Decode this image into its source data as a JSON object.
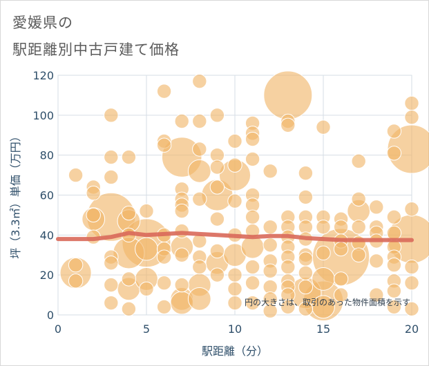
{
  "header": {
    "line1": "愛媛県の",
    "line2": "駅距離別中古戸建て価格"
  },
  "chart_data": {
    "type": "scatter",
    "title": "愛媛県の駅距離別中古戸建て価格",
    "xlabel": "駅距離（分）",
    "ylabel": "坪（3.3㎡）単価（万円）",
    "xlim": [
      0,
      20
    ],
    "ylim": [
      0,
      120
    ],
    "xticks": [
      0,
      5,
      10,
      15,
      20
    ],
    "yticks": [
      0,
      20,
      40,
      60,
      80,
      100,
      120
    ],
    "grid": true,
    "note": "円の大きさは、取引のあった物件面積を示す",
    "colors": {
      "bubble": "#f0b468",
      "bubble_edge": "#ffffff",
      "trend": "#d9695a"
    },
    "points": [
      {
        "x": 1,
        "y": 70,
        "s": 1
      },
      {
        "x": 1,
        "y": 21,
        "s": 3
      },
      {
        "x": 1,
        "y": 25,
        "s": 1
      },
      {
        "x": 1,
        "y": 17,
        "s": 1
      },
      {
        "x": 2,
        "y": 64,
        "s": 1
      },
      {
        "x": 2,
        "y": 61,
        "s": 1
      },
      {
        "x": 2,
        "y": 48,
        "s": 2
      },
      {
        "x": 2,
        "y": 50,
        "s": 1
      },
      {
        "x": 2,
        "y": 39,
        "s": 1
      },
      {
        "x": 3,
        "y": 100,
        "s": 1
      },
      {
        "x": 3,
        "y": 79,
        "s": 1
      },
      {
        "x": 3,
        "y": 69,
        "s": 1
      },
      {
        "x": 3,
        "y": 49,
        "s": 5
      },
      {
        "x": 3,
        "y": 29,
        "s": 1
      },
      {
        "x": 3,
        "y": 26,
        "s": 1
      },
      {
        "x": 3,
        "y": 15,
        "s": 1
      },
      {
        "x": 3,
        "y": 6,
        "s": 1
      },
      {
        "x": 4,
        "y": 79,
        "s": 1
      },
      {
        "x": 4,
        "y": 51,
        "s": 1
      },
      {
        "x": 4,
        "y": 47,
        "s": 2
      },
      {
        "x": 4,
        "y": 40,
        "s": 1
      },
      {
        "x": 4,
        "y": 31,
        "s": 3
      },
      {
        "x": 4,
        "y": 18,
        "s": 1
      },
      {
        "x": 4,
        "y": 13,
        "s": 2
      },
      {
        "x": 4,
        "y": 3,
        "s": 1
      },
      {
        "x": 5,
        "y": 52,
        "s": 1
      },
      {
        "x": 5,
        "y": 36,
        "s": 5
      },
      {
        "x": 5,
        "y": 33,
        "s": 2
      },
      {
        "x": 5,
        "y": 18,
        "s": 2
      },
      {
        "x": 5,
        "y": 13,
        "s": 1
      },
      {
        "x": 6,
        "y": 112,
        "s": 1
      },
      {
        "x": 6,
        "y": 87,
        "s": 1
      },
      {
        "x": 6,
        "y": 85,
        "s": 1
      },
      {
        "x": 6,
        "y": 40,
        "s": 1
      },
      {
        "x": 6,
        "y": 33,
        "s": 1
      },
      {
        "x": 6,
        "y": 29,
        "s": 1
      },
      {
        "x": 6,
        "y": 16,
        "s": 1
      },
      {
        "x": 6,
        "y": 4,
        "s": 1
      },
      {
        "x": 7,
        "y": 97,
        "s": 1
      },
      {
        "x": 7,
        "y": 79,
        "s": 4
      },
      {
        "x": 7,
        "y": 63,
        "s": 1
      },
      {
        "x": 7,
        "y": 58,
        "s": 1
      },
      {
        "x": 7,
        "y": 55,
        "s": 1
      },
      {
        "x": 7,
        "y": 52,
        "s": 1
      },
      {
        "x": 7,
        "y": 42,
        "s": 1
      },
      {
        "x": 7,
        "y": 34,
        "s": 2
      },
      {
        "x": 7,
        "y": 30,
        "s": 1
      },
      {
        "x": 7,
        "y": 15,
        "s": 1
      },
      {
        "x": 7,
        "y": 8,
        "s": 2
      },
      {
        "x": 7,
        "y": 6,
        "s": 2
      },
      {
        "x": 8,
        "y": 117,
        "s": 1
      },
      {
        "x": 8,
        "y": 97,
        "s": 1
      },
      {
        "x": 8,
        "y": 83,
        "s": 1
      },
      {
        "x": 8,
        "y": 72,
        "s": 2
      },
      {
        "x": 8,
        "y": 58,
        "s": 1
      },
      {
        "x": 8,
        "y": 37,
        "s": 1
      },
      {
        "x": 8,
        "y": 29,
        "s": 1
      },
      {
        "x": 8,
        "y": 24,
        "s": 1
      },
      {
        "x": 8,
        "y": 15,
        "s": 2
      },
      {
        "x": 8,
        "y": 8,
        "s": 2
      },
      {
        "x": 9,
        "y": 100,
        "s": 1
      },
      {
        "x": 9,
        "y": 80,
        "s": 1
      },
      {
        "x": 9,
        "y": 74,
        "s": 1
      },
      {
        "x": 9,
        "y": 64,
        "s": 1
      },
      {
        "x": 9,
        "y": 60,
        "s": 3
      },
      {
        "x": 9,
        "y": 48,
        "s": 1
      },
      {
        "x": 9,
        "y": 32,
        "s": 1
      },
      {
        "x": 9,
        "y": 26,
        "s": 2
      },
      {
        "x": 9,
        "y": 20,
        "s": 1
      },
      {
        "x": 10,
        "y": 87,
        "s": 1
      },
      {
        "x": 10,
        "y": 75,
        "s": 1
      },
      {
        "x": 10,
        "y": 70,
        "s": 3
      },
      {
        "x": 10,
        "y": 57,
        "s": 1
      },
      {
        "x": 10,
        "y": 40,
        "s": 1
      },
      {
        "x": 10,
        "y": 30,
        "s": 2
      },
      {
        "x": 10,
        "y": 20,
        "s": 1
      },
      {
        "x": 10,
        "y": 13,
        "s": 1
      },
      {
        "x": 10,
        "y": 6,
        "s": 1
      },
      {
        "x": 11,
        "y": 96,
        "s": 1
      },
      {
        "x": 11,
        "y": 91,
        "s": 1
      },
      {
        "x": 11,
        "y": 88,
        "s": 1
      },
      {
        "x": 11,
        "y": 78,
        "s": 1
      },
      {
        "x": 11,
        "y": 60,
        "s": 1
      },
      {
        "x": 11,
        "y": 55,
        "s": 1
      },
      {
        "x": 11,
        "y": 49,
        "s": 1
      },
      {
        "x": 11,
        "y": 42,
        "s": 1
      },
      {
        "x": 11,
        "y": 34,
        "s": 2
      },
      {
        "x": 11,
        "y": 24,
        "s": 1
      },
      {
        "x": 11,
        "y": 16,
        "s": 1
      },
      {
        "x": 11,
        "y": 6,
        "s": 1
      },
      {
        "x": 12,
        "y": 72,
        "s": 1
      },
      {
        "x": 12,
        "y": 44,
        "s": 1
      },
      {
        "x": 12,
        "y": 35,
        "s": 1
      },
      {
        "x": 12,
        "y": 27,
        "s": 1
      },
      {
        "x": 12,
        "y": 22,
        "s": 1
      },
      {
        "x": 12,
        "y": 14,
        "s": 1
      },
      {
        "x": 12,
        "y": 8,
        "s": 1
      },
      {
        "x": 12,
        "y": 2,
        "s": 1
      },
      {
        "x": 13,
        "y": 110,
        "s": 5
      },
      {
        "x": 13,
        "y": 97,
        "s": 1
      },
      {
        "x": 13,
        "y": 95,
        "s": 1
      },
      {
        "x": 13,
        "y": 49,
        "s": 1
      },
      {
        "x": 13,
        "y": 44,
        "s": 1
      },
      {
        "x": 13,
        "y": 39,
        "s": 1
      },
      {
        "x": 13,
        "y": 34,
        "s": 1
      },
      {
        "x": 13,
        "y": 29,
        "s": 1
      },
      {
        "x": 13,
        "y": 24,
        "s": 1
      },
      {
        "x": 13,
        "y": 17,
        "s": 1
      },
      {
        "x": 13,
        "y": 14,
        "s": 1
      },
      {
        "x": 13,
        "y": 10,
        "s": 1
      },
      {
        "x": 13,
        "y": 4,
        "s": 1
      },
      {
        "x": 14,
        "y": 71,
        "s": 1
      },
      {
        "x": 14,
        "y": 59,
        "s": 1
      },
      {
        "x": 14,
        "y": 49,
        "s": 1
      },
      {
        "x": 14,
        "y": 44,
        "s": 1
      },
      {
        "x": 14,
        "y": 38,
        "s": 1
      },
      {
        "x": 14,
        "y": 30,
        "s": 1
      },
      {
        "x": 14,
        "y": 28,
        "s": 1
      },
      {
        "x": 14,
        "y": 21,
        "s": 1
      },
      {
        "x": 14,
        "y": 14,
        "s": 1
      },
      {
        "x": 14,
        "y": 11,
        "s": 3
      },
      {
        "x": 14,
        "y": 3,
        "s": 1
      },
      {
        "x": 15,
        "y": 94,
        "s": 1
      },
      {
        "x": 15,
        "y": 49,
        "s": 1
      },
      {
        "x": 15,
        "y": 44,
        "s": 1
      },
      {
        "x": 15,
        "y": 31,
        "s": 1
      },
      {
        "x": 15,
        "y": 18,
        "s": 2
      },
      {
        "x": 15,
        "y": 7,
        "s": 4
      },
      {
        "x": 15,
        "y": 4,
        "s": 2
      },
      {
        "x": 16,
        "y": 48,
        "s": 1
      },
      {
        "x": 16,
        "y": 44,
        "s": 1
      },
      {
        "x": 16,
        "y": 37,
        "s": 1
      },
      {
        "x": 16,
        "y": 33,
        "s": 1
      },
      {
        "x": 16,
        "y": 29,
        "s": 6
      },
      {
        "x": 16,
        "y": 18,
        "s": 1
      },
      {
        "x": 16,
        "y": 10,
        "s": 1
      },
      {
        "x": 17,
        "y": 77,
        "s": 1
      },
      {
        "x": 17,
        "y": 58,
        "s": 1
      },
      {
        "x": 17,
        "y": 52,
        "s": 2
      },
      {
        "x": 17,
        "y": 44,
        "s": 1
      },
      {
        "x": 17,
        "y": 36,
        "s": 1
      },
      {
        "x": 17,
        "y": 30,
        "s": 1
      },
      {
        "x": 18,
        "y": 54,
        "s": 1
      },
      {
        "x": 18,
        "y": 44,
        "s": 1
      },
      {
        "x": 18,
        "y": 41,
        "s": 1
      },
      {
        "x": 18,
        "y": 37,
        "s": 1
      },
      {
        "x": 18,
        "y": 27,
        "s": 1
      },
      {
        "x": 18,
        "y": 10,
        "s": 1
      },
      {
        "x": 19,
        "y": 92,
        "s": 1
      },
      {
        "x": 19,
        "y": 81,
        "s": 1
      },
      {
        "x": 19,
        "y": 49,
        "s": 1
      },
      {
        "x": 19,
        "y": 41,
        "s": 1
      },
      {
        "x": 19,
        "y": 34,
        "s": 1
      },
      {
        "x": 19,
        "y": 29,
        "s": 1
      },
      {
        "x": 19,
        "y": 25,
        "s": 1
      },
      {
        "x": 19,
        "y": 17,
        "s": 1
      },
      {
        "x": 19,
        "y": 12,
        "s": 1
      },
      {
        "x": 19,
        "y": 4,
        "s": 1
      },
      {
        "x": 20,
        "y": 106,
        "s": 1
      },
      {
        "x": 20,
        "y": 99,
        "s": 1
      },
      {
        "x": 20,
        "y": 83,
        "s": 5
      },
      {
        "x": 20,
        "y": 53,
        "s": 1
      },
      {
        "x": 20,
        "y": 38,
        "s": 5
      },
      {
        "x": 20,
        "y": 24,
        "s": 1
      },
      {
        "x": 20,
        "y": 16,
        "s": 1
      },
      {
        "x": 20,
        "y": 3,
        "s": 1
      }
    ],
    "trend": {
      "x": [
        0,
        1,
        2,
        3,
        4,
        5,
        6,
        7,
        8,
        9,
        10,
        11,
        12,
        13,
        14,
        15,
        16,
        17,
        18,
        19,
        20
      ],
      "y": [
        38,
        38,
        38,
        39,
        41,
        40,
        40.5,
        41,
        40.5,
        40,
        39.5,
        39,
        39.5,
        39.5,
        38.5,
        38,
        37.5,
        37.5,
        37.5,
        37.5,
        37.5
      ]
    }
  }
}
